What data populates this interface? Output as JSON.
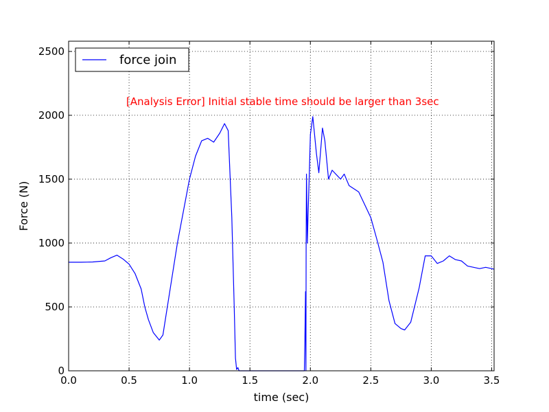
{
  "chart_data": {
    "type": "line",
    "title": "",
    "xlabel": "time (sec)",
    "ylabel": "Force (N)",
    "xlim": [
      0.0,
      3.52
    ],
    "ylim": [
      0,
      2580
    ],
    "x_ticks": [
      0.0,
      0.5,
      1.0,
      1.5,
      2.0,
      2.5,
      3.0,
      3.5
    ],
    "x_tick_labels": [
      "0.0",
      "0.5",
      "1.0",
      "1.5",
      "2.0",
      "2.5",
      "3.0",
      "3.5"
    ],
    "y_ticks": [
      0,
      500,
      1000,
      1500,
      2000,
      2500
    ],
    "y_tick_labels": [
      "0",
      "500",
      "1000",
      "1500",
      "2000",
      "2500"
    ],
    "grid": true,
    "grid_style": "dotted",
    "legend": {
      "placement": "top-left",
      "entries": [
        "force join"
      ]
    },
    "annotation": {
      "text": "[Analysis Error] Initial stable time should be larger than 3sec",
      "color": "#ff0000",
      "x": 1.77,
      "y": 2080
    },
    "series": [
      {
        "name": "force join",
        "color": "#0000ff",
        "points": [
          [
            0.0,
            850
          ],
          [
            0.1,
            850
          ],
          [
            0.2,
            852
          ],
          [
            0.3,
            860
          ],
          [
            0.35,
            885
          ],
          [
            0.4,
            905
          ],
          [
            0.45,
            875
          ],
          [
            0.5,
            835
          ],
          [
            0.55,
            760
          ],
          [
            0.6,
            640
          ],
          [
            0.63,
            500
          ],
          [
            0.66,
            400
          ],
          [
            0.7,
            300
          ],
          [
            0.75,
            240
          ],
          [
            0.78,
            280
          ],
          [
            0.8,
            400
          ],
          [
            0.85,
            700
          ],
          [
            0.9,
            1000
          ],
          [
            0.95,
            1250
          ],
          [
            1.0,
            1500
          ],
          [
            1.05,
            1680
          ],
          [
            1.1,
            1800
          ],
          [
            1.15,
            1820
          ],
          [
            1.2,
            1790
          ],
          [
            1.25,
            1860
          ],
          [
            1.29,
            1935
          ],
          [
            1.32,
            1880
          ],
          [
            1.35,
            1200
          ],
          [
            1.37,
            500
          ],
          [
            1.38,
            100
          ],
          [
            1.39,
            10
          ],
          [
            1.4,
            25
          ],
          [
            1.41,
            0
          ],
          [
            1.5,
            0
          ],
          [
            1.7,
            0
          ],
          [
            1.9,
            0
          ],
          [
            1.95,
            0
          ],
          [
            1.955,
            250
          ],
          [
            1.96,
            620
          ],
          [
            1.963,
            0
          ],
          [
            1.965,
            1000
          ],
          [
            1.968,
            1540
          ],
          [
            1.975,
            1000
          ],
          [
            1.98,
            1200
          ],
          [
            1.99,
            1500
          ],
          [
            2.0,
            1850
          ],
          [
            2.02,
            1990
          ],
          [
            2.05,
            1700
          ],
          [
            2.07,
            1550
          ],
          [
            2.1,
            1900
          ],
          [
            2.12,
            1800
          ],
          [
            2.15,
            1500
          ],
          [
            2.18,
            1570
          ],
          [
            2.2,
            1550
          ],
          [
            2.25,
            1500
          ],
          [
            2.28,
            1540
          ],
          [
            2.32,
            1450
          ],
          [
            2.4,
            1400
          ],
          [
            2.45,
            1300
          ],
          [
            2.5,
            1200
          ],
          [
            2.55,
            1030
          ],
          [
            2.6,
            850
          ],
          [
            2.65,
            550
          ],
          [
            2.7,
            370
          ],
          [
            2.75,
            330
          ],
          [
            2.78,
            320
          ],
          [
            2.83,
            380
          ],
          [
            2.9,
            650
          ],
          [
            2.95,
            900
          ],
          [
            3.0,
            900
          ],
          [
            3.05,
            840
          ],
          [
            3.1,
            860
          ],
          [
            3.15,
            900
          ],
          [
            3.2,
            870
          ],
          [
            3.25,
            860
          ],
          [
            3.3,
            820
          ],
          [
            3.4,
            800
          ],
          [
            3.45,
            810
          ],
          [
            3.5,
            800
          ],
          [
            3.52,
            795
          ]
        ]
      }
    ]
  }
}
